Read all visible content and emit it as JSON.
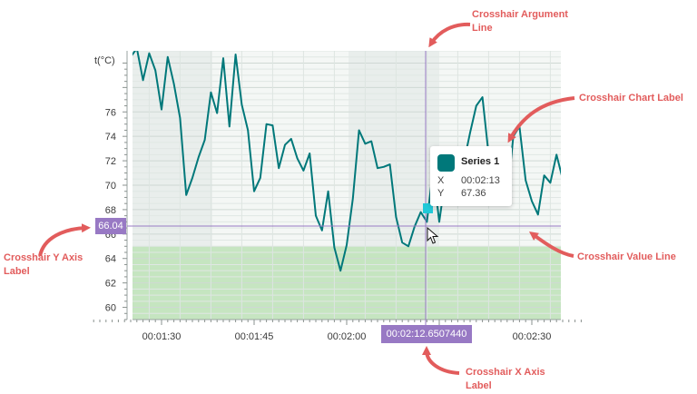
{
  "colors": {
    "series": "#00787a",
    "crosshair": "#9879c4",
    "annotation": "#e25c5c",
    "highlight_band": "#c3e4be",
    "marker": "#20c9d8"
  },
  "chart_data": {
    "type": "line",
    "y_axis_title": "t(°C)",
    "ylim": [
      59,
      81
    ],
    "y_ticks": [
      "60",
      "62",
      "64",
      "66",
      "68",
      "70",
      "72",
      "74",
      "76"
    ],
    "x_ticks": [
      "00:01:30",
      "00:01:45",
      "00:02:00",
      "00:02:30"
    ],
    "grid": true,
    "series": [
      {
        "name": "Series 1",
        "x_seconds": [
          81,
          82,
          83,
          84,
          85,
          86,
          87,
          88,
          89,
          90,
          91,
          92,
          93,
          94,
          95,
          96,
          97,
          98,
          99,
          100,
          101,
          102,
          103,
          104,
          105,
          106,
          107,
          108,
          109,
          110,
          111,
          112,
          113,
          114,
          115,
          116,
          117,
          118,
          119,
          120,
          121,
          122,
          123,
          124,
          125,
          126,
          127,
          128,
          129,
          130,
          131,
          132,
          133,
          134,
          135,
          136,
          137,
          138,
          139,
          140,
          141,
          142,
          143,
          144,
          145,
          146,
          147,
          148,
          149,
          150,
          151,
          152,
          153,
          154,
          155,
          156
        ],
        "values": [
          78.5,
          70.4,
          73.4,
          75.8,
          80.5,
          81.2,
          78.6,
          80.8,
          79.4,
          76.2,
          80.5,
          78.3,
          75.5,
          69.2,
          70.6,
          72.3,
          73.7,
          77.6,
          75.9,
          80.4,
          74.8,
          80.7,
          76.6,
          74.5,
          69.5,
          70.6,
          75.0,
          74.9,
          71.4,
          73.3,
          73.8,
          72.2,
          71.2,
          72.6,
          67.5,
          66.3,
          69.5,
          64.9,
          63.0,
          65.1,
          68.9,
          74.5,
          73.4,
          73.6,
          71.4,
          71.5,
          71.7,
          67.4,
          65.3,
          65.0,
          66.6,
          67.8,
          67.0,
          71.3,
          67.0,
          70.6,
          72.0,
          70.5,
          71.9,
          74.3,
          76.5,
          77.2,
          72.5,
          70.1,
          70.5,
          68.9,
          74.0,
          74.8,
          70.4,
          68.7,
          67.6,
          70.8,
          70.2,
          72.5,
          70.5,
          73.5
        ]
      }
    ],
    "highlight_band": [
      59,
      65
    ]
  },
  "crosshair": {
    "argument_label": "00:02:12.6507440",
    "value_label": "66.04",
    "tooltip": {
      "series_name": "Series 1",
      "x_key": "X",
      "x_value": "00:02:13",
      "y_key": "Y",
      "y_value": "67.36"
    }
  },
  "annotations": {
    "argument_line": [
      "Crosshair Argument",
      "Line"
    ],
    "chart_label": [
      "Crosshair Chart Label"
    ],
    "value_line": [
      "Crosshair Value Line"
    ],
    "y_axis_label": [
      "Crosshair Y Axis",
      "Label"
    ],
    "x_axis_label": [
      "Crosshair X Axis",
      "Label"
    ]
  }
}
